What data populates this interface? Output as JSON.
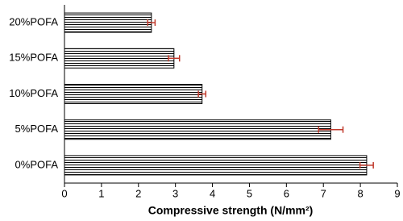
{
  "chart_data": {
    "type": "hbar",
    "x_label": "Compressive strength (N/mm²)",
    "categories": [
      "20%POFA",
      "15%POFA",
      "10%POFA",
      "5%POFA",
      "0%POFA"
    ],
    "values": [
      2.35,
      2.96,
      3.72,
      7.2,
      8.17
    ],
    "errors": [
      0.1,
      0.15,
      0.1,
      0.33,
      0.18
    ],
    "color": "#000000",
    "error_color": "#c0392b",
    "xlim": [
      0,
      9
    ],
    "xticks": [
      0,
      1,
      2,
      3,
      4,
      5,
      6,
      7,
      8,
      9
    ]
  }
}
